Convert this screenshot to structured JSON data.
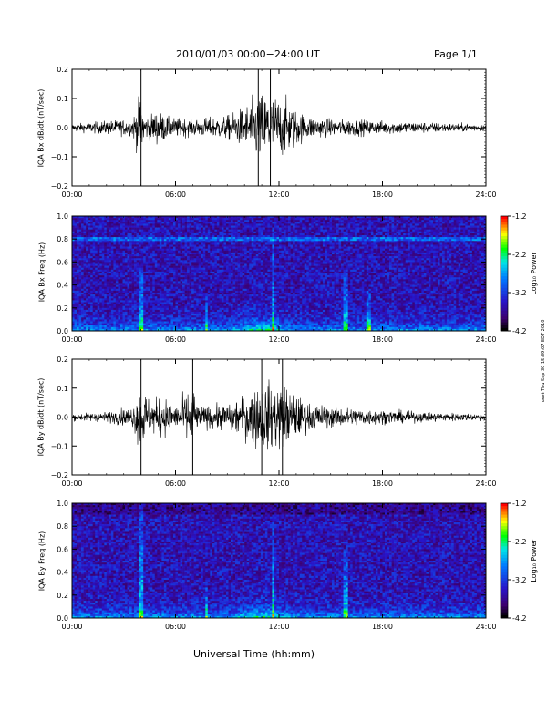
{
  "header": {
    "title": "2010/01/03  00:00−24:00 UT",
    "page": "Page 1/1"
  },
  "xlabel": "Universal Time (hh:mm)",
  "stamp": "uset Thu Sep 30 15:39:07 EDT 2010",
  "colorbar": {
    "label": "Log₁₀ Power",
    "ticks": [
      "-1.2",
      "-2.2",
      "-3.2",
      "-4.2"
    ],
    "colors": [
      "#ff0000",
      "#ffff00",
      "#00ff00",
      "#00ffff",
      "#0000ff",
      "#5000c0",
      "#000000"
    ]
  },
  "chart_data": [
    {
      "type": "line",
      "ylabel": "IQA Bx dB/dt (nT/sec)",
      "x_ticks": [
        "00:00",
        "06:00",
        "12:00",
        "18:00",
        "24:00"
      ],
      "y_ticks": [
        "0.2",
        "0.1",
        "0.0",
        "−0.1",
        "−0.2"
      ],
      "xlim": [
        0,
        24
      ],
      "ylim": [
        -0.2,
        0.2
      ],
      "envelope": [
        {
          "t": 0,
          "amp": 0.02
        },
        {
          "t": 2,
          "amp": 0.04
        },
        {
          "t": 3.5,
          "amp": 0.05
        },
        {
          "t": 4.0,
          "amp": 0.2
        },
        {
          "t": 4.2,
          "amp": 0.06
        },
        {
          "t": 5,
          "amp": 0.1
        },
        {
          "t": 5.6,
          "amp": 0.06
        },
        {
          "t": 7,
          "amp": 0.05
        },
        {
          "t": 8,
          "amp": 0.06
        },
        {
          "t": 9,
          "amp": 0.07
        },
        {
          "t": 10,
          "amp": 0.12
        },
        {
          "t": 10.8,
          "amp": 0.2
        },
        {
          "t": 11.5,
          "amp": 0.2
        },
        {
          "t": 12.5,
          "amp": 0.16
        },
        {
          "t": 13.5,
          "amp": 0.07
        },
        {
          "t": 15,
          "amp": 0.05
        },
        {
          "t": 16,
          "amp": 0.05
        },
        {
          "t": 18,
          "amp": 0.04
        },
        {
          "t": 21,
          "amp": 0.03
        },
        {
          "t": 24,
          "amp": 0.02
        }
      ]
    },
    {
      "type": "heatmap",
      "ylabel": "IQA Bx Freq (Hz)",
      "x_ticks": [
        "00:00",
        "06:00",
        "12:00",
        "18:00",
        "24:00"
      ],
      "y_ticks": [
        "1.0",
        "0.8",
        "0.6",
        "0.4",
        "0.2",
        "0.0"
      ],
      "xlim": [
        0,
        24
      ],
      "ylim": [
        0,
        1.0
      ],
      "zlim": [
        -4.2,
        -1.2
      ],
      "line_freq": 0.8,
      "bursts": [
        {
          "t": 4.0,
          "f_max": 0.55
        },
        {
          "t": 7.8,
          "f_max": 0.3
        },
        {
          "t": 11.7,
          "f_max": 0.9
        },
        {
          "t": 15.9,
          "f_max": 0.5
        },
        {
          "t": 17.2,
          "f_max": 0.35
        }
      ]
    },
    {
      "type": "line",
      "ylabel": "IQA By dB/dt (nT/sec)",
      "x_ticks": [
        "00:00",
        "06:00",
        "12:00",
        "18:00",
        "24:00"
      ],
      "y_ticks": [
        "0.2",
        "0.1",
        "0.0",
        "−0.1",
        "−0.2"
      ],
      "xlim": [
        0,
        24
      ],
      "ylim": [
        -0.2,
        0.2
      ],
      "envelope": [
        {
          "t": 0,
          "amp": 0.02
        },
        {
          "t": 2,
          "amp": 0.03
        },
        {
          "t": 3.5,
          "amp": 0.06
        },
        {
          "t": 4.0,
          "amp": 0.2
        },
        {
          "t": 4.5,
          "amp": 0.1
        },
        {
          "t": 5.3,
          "amp": 0.12
        },
        {
          "t": 6,
          "amp": 0.06
        },
        {
          "t": 7.0,
          "amp": 0.2
        },
        {
          "t": 7.3,
          "amp": 0.06
        },
        {
          "t": 9,
          "amp": 0.08
        },
        {
          "t": 10,
          "amp": 0.13
        },
        {
          "t": 11,
          "amp": 0.2
        },
        {
          "t": 12.2,
          "amp": 0.2
        },
        {
          "t": 13.5,
          "amp": 0.09
        },
        {
          "t": 15,
          "amp": 0.06
        },
        {
          "t": 17,
          "amp": 0.05
        },
        {
          "t": 20,
          "amp": 0.03
        },
        {
          "t": 24,
          "amp": 0.02
        }
      ]
    },
    {
      "type": "heatmap",
      "ylabel": "IQA By Freq (Hz)",
      "x_ticks": [
        "00:00",
        "06:00",
        "12:00",
        "18:00",
        "24:00"
      ],
      "y_ticks": [
        "1.0",
        "0.8",
        "0.6",
        "0.4",
        "0.2",
        "0.0"
      ],
      "xlim": [
        0,
        24
      ],
      "ylim": [
        0,
        1.0
      ],
      "zlim": [
        -4.2,
        -1.2
      ],
      "bursts": [
        {
          "t": 4.0,
          "f_max": 1.0
        },
        {
          "t": 7.8,
          "f_max": 0.3
        },
        {
          "t": 11.7,
          "f_max": 0.9
        },
        {
          "t": 15.9,
          "f_max": 0.6
        }
      ]
    }
  ]
}
